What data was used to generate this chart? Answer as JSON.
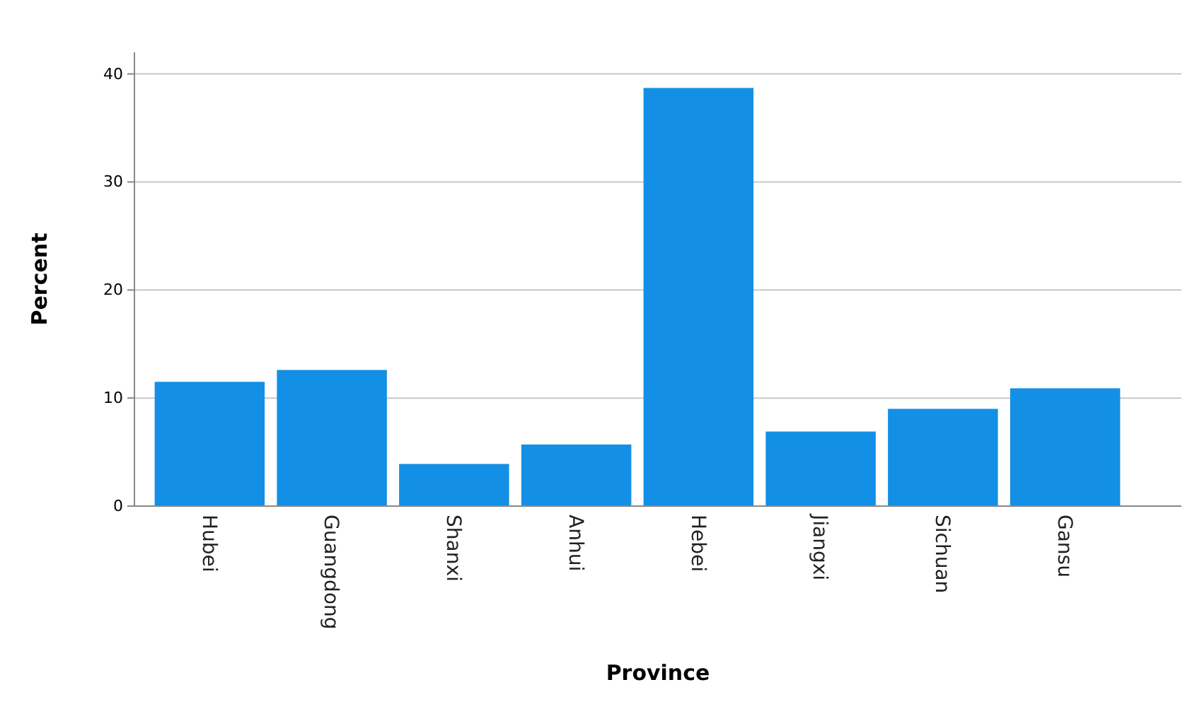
{
  "chart_data": {
    "type": "bar",
    "xlabel": "Province",
    "ylabel": "Percent",
    "categories": [
      "Hubei",
      "Guangdong",
      "Shanxi",
      "Anhui",
      "Hebei",
      "Jiangxi",
      "Sichuan",
      "Gansu"
    ],
    "values": [
      11.5,
      12.6,
      3.9,
      5.7,
      38.7,
      6.9,
      9.0,
      10.9
    ],
    "color": "#1390e5",
    "ylim": [
      0,
      42
    ],
    "yticks": [
      0,
      10,
      20,
      30,
      40
    ],
    "grid": "y"
  }
}
